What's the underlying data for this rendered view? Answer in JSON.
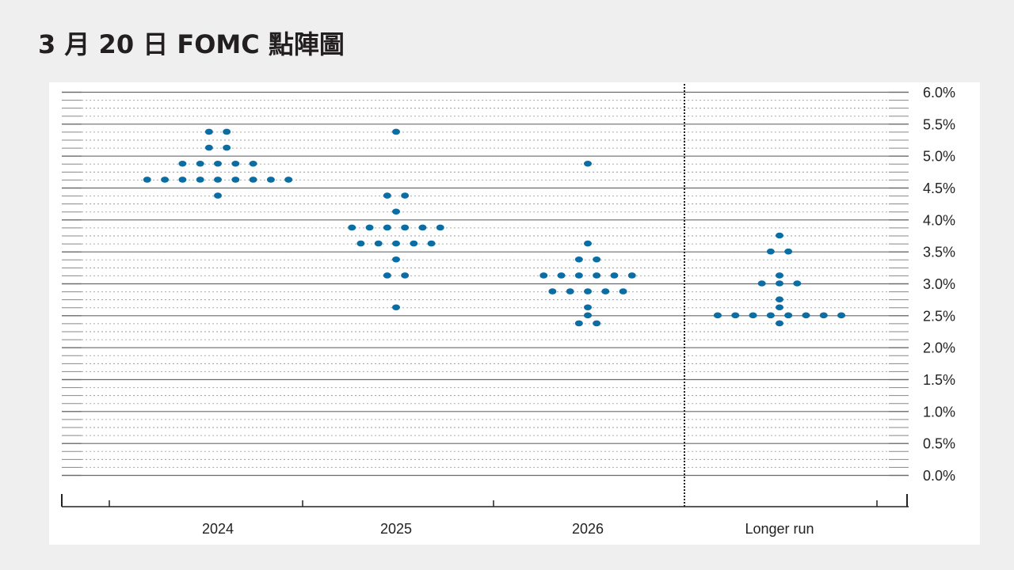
{
  "title": "3 月 20 日 FOMC 點陣圖",
  "chart_data": {
    "type": "scatter",
    "title": "",
    "xlabel": "",
    "ylabel": "",
    "categories": [
      "2024",
      "2025",
      "2026",
      "Longer run"
    ],
    "ylim": [
      0,
      6
    ],
    "y_ticks": [
      "6.0%",
      "5.5%",
      "5.0%",
      "4.5%",
      "4.0%",
      "3.5%",
      "3.0%",
      "2.5%",
      "2.0%",
      "1.5%",
      "1.0%",
      "0.5%",
      "0.0%"
    ],
    "grid": true,
    "dot_color": "#0a6ea5",
    "series": [
      {
        "category": "2024",
        "dots": [
          {
            "y": 5.375,
            "count": 2
          },
          {
            "y": 5.125,
            "count": 2
          },
          {
            "y": 4.875,
            "count": 5
          },
          {
            "y": 4.625,
            "count": 9
          },
          {
            "y": 4.375,
            "count": 1
          }
        ]
      },
      {
        "category": "2025",
        "dots": [
          {
            "y": 5.375,
            "count": 1
          },
          {
            "y": 4.375,
            "count": 2
          },
          {
            "y": 4.125,
            "count": 1
          },
          {
            "y": 3.875,
            "count": 6
          },
          {
            "y": 3.625,
            "count": 5
          },
          {
            "y": 3.375,
            "count": 1
          },
          {
            "y": 3.125,
            "count": 2
          },
          {
            "y": 2.625,
            "count": 1
          }
        ]
      },
      {
        "category": "2026",
        "dots": [
          {
            "y": 4.875,
            "count": 1
          },
          {
            "y": 3.625,
            "count": 1
          },
          {
            "y": 3.375,
            "count": 2
          },
          {
            "y": 3.125,
            "count": 6
          },
          {
            "y": 2.875,
            "count": 5
          },
          {
            "y": 2.625,
            "count": 1
          },
          {
            "y": 2.5,
            "count": 1
          },
          {
            "y": 2.375,
            "count": 2
          }
        ]
      },
      {
        "category": "Longer run",
        "dots": [
          {
            "y": 3.75,
            "count": 1
          },
          {
            "y": 3.5,
            "count": 2
          },
          {
            "y": 3.125,
            "count": 1
          },
          {
            "y": 3.0,
            "count": 3
          },
          {
            "y": 2.75,
            "count": 1
          },
          {
            "y": 2.625,
            "count": 1
          },
          {
            "y": 2.5,
            "count": 8
          },
          {
            "y": 2.375,
            "count": 1
          }
        ]
      }
    ]
  }
}
